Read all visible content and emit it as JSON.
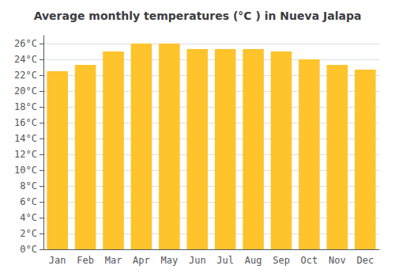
{
  "chart_data": {
    "type": "bar",
    "title": "Average monthly temperatures (°C ) in Nueva Jalapa",
    "categories": [
      "Jan",
      "Feb",
      "Mar",
      "Apr",
      "May",
      "Jun",
      "Jul",
      "Aug",
      "Sep",
      "Oct",
      "Nov",
      "Dec"
    ],
    "values": [
      22.5,
      23.3,
      25.0,
      26.0,
      26.0,
      25.3,
      25.3,
      25.3,
      25.0,
      24.0,
      23.3,
      22.7
    ],
    "color": "#FFC32B",
    "ylim": [
      0,
      27
    ],
    "yticks": [
      {
        "value": 0,
        "label": "0°C"
      },
      {
        "value": 2,
        "label": "2°C"
      },
      {
        "value": 4,
        "label": "4°C"
      },
      {
        "value": 6,
        "label": "6°C"
      },
      {
        "value": 8,
        "label": "8°C"
      },
      {
        "value": 10,
        "label": "10°C"
      },
      {
        "value": 12,
        "label": "12°C"
      },
      {
        "value": 14,
        "label": "14°C"
      },
      {
        "value": 16,
        "label": "16°C"
      },
      {
        "value": 18,
        "label": "18°C"
      },
      {
        "value": 20,
        "label": "20°C"
      },
      {
        "value": 22,
        "label": "22°C"
      },
      {
        "value": 24,
        "label": "24°C"
      },
      {
        "value": 26,
        "label": "26°C"
      }
    ],
    "grid": true
  }
}
